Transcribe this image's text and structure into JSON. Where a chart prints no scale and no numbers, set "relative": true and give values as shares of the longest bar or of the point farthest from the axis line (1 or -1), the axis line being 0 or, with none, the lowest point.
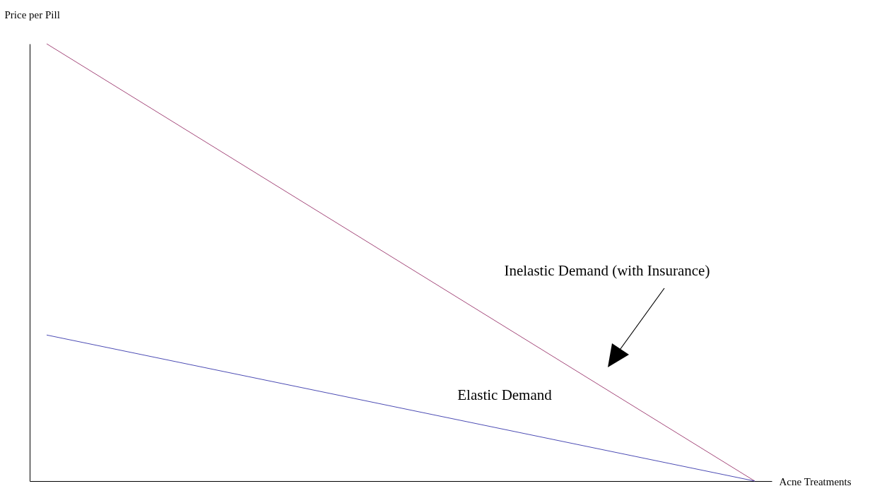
{
  "chart_data": {
    "type": "line",
    "xlabel": "Acne Treatments",
    "ylabel": "Price per Pill",
    "categories": [
      null,
      null
    ],
    "relative": true,
    "series": [
      {
        "name": "Inelastic Demand (with Insurance)",
        "color": "#a4487a",
        "values": [
          1,
          0
        ]
      },
      {
        "name": "Elastic Demand",
        "color": "#4b4bb4",
        "values": [
          0.334,
          0
        ]
      }
    ]
  }
}
